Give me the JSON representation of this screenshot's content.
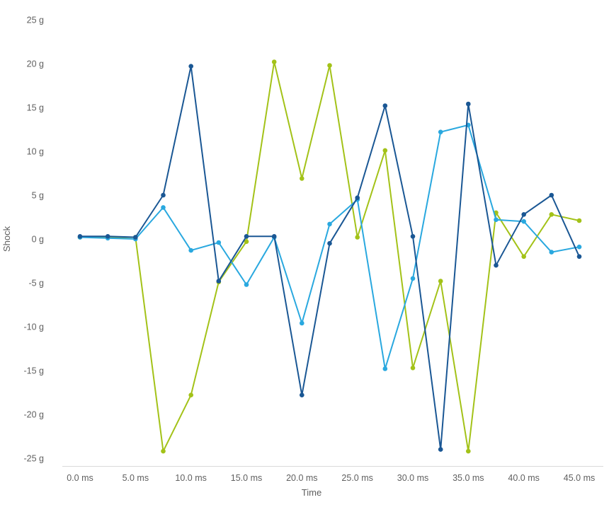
{
  "chart": {
    "y_axis_title": "Shock",
    "x_axis_title": "Time"
  },
  "chart_data": {
    "type": "line",
    "title": "",
    "xlabel": "Time",
    "ylabel": "Shock",
    "x_unit": "ms",
    "y_unit": "g",
    "ylim": [
      -25,
      25
    ],
    "xlim": [
      0,
      45
    ],
    "grid": false,
    "legend": "none",
    "x": [
      0,
      2.5,
      5,
      7.5,
      10,
      12.5,
      15,
      17.5,
      20,
      22.5,
      25,
      27.5,
      30,
      32.5,
      35,
      37.5,
      40,
      42.5,
      45
    ],
    "series": [
      {
        "name": "series-green",
        "color": "#a3c218",
        "values": [
          0.2,
          0.2,
          0.2,
          -24.2,
          -17.8,
          -4.9,
          -0.3,
          20.2,
          6.9,
          19.8,
          0.2,
          10.1,
          -14.7,
          -4.8,
          -24.2,
          3.0,
          -2.0,
          2.8,
          2.1
        ]
      },
      {
        "name": "series-light-blue",
        "color": "#29a8df",
        "values": [
          0.2,
          0.1,
          0.0,
          3.6,
          -1.3,
          -0.4,
          -5.2,
          0.2,
          -9.6,
          1.7,
          4.5,
          -14.8,
          -4.5,
          12.2,
          13.0,
          2.2,
          2.0,
          -1.5,
          -0.9
        ]
      },
      {
        "name": "series-dark-blue",
        "color": "#1a5794",
        "values": [
          0.3,
          0.3,
          0.2,
          5.0,
          19.7,
          -4.8,
          0.3,
          0.3,
          -17.8,
          -0.5,
          4.7,
          15.2,
          0.3,
          -24.0,
          15.4,
          -3.0,
          2.8,
          5.0,
          -2.0
        ]
      }
    ],
    "y_ticks": [
      {
        "value": 25,
        "label": "25 g"
      },
      {
        "value": 20,
        "label": "20 g"
      },
      {
        "value": 15,
        "label": "15 g"
      },
      {
        "value": 10,
        "label": "10 g"
      },
      {
        "value": 5,
        "label": "5 g"
      },
      {
        "value": 0,
        "label": "0 g"
      },
      {
        "value": -5,
        "label": "-5 g"
      },
      {
        "value": -10,
        "label": "-10 g"
      },
      {
        "value": -15,
        "label": "-15 g"
      },
      {
        "value": -20,
        "label": "-20 g"
      },
      {
        "value": -25,
        "label": "-25 g"
      }
    ],
    "x_ticks": [
      {
        "value": 0,
        "label": "0.0 ms"
      },
      {
        "value": 5,
        "label": "5.0 ms"
      },
      {
        "value": 10,
        "label": "10.0 ms"
      },
      {
        "value": 15,
        "label": "15.0 ms"
      },
      {
        "value": 20,
        "label": "20.0 ms"
      },
      {
        "value": 25,
        "label": "25.0 ms"
      },
      {
        "value": 30,
        "label": "30.0 ms"
      },
      {
        "value": 35,
        "label": "35.0 ms"
      },
      {
        "value": 40,
        "label": "40.0 ms"
      },
      {
        "value": 45,
        "label": "45.0 ms"
      }
    ]
  }
}
